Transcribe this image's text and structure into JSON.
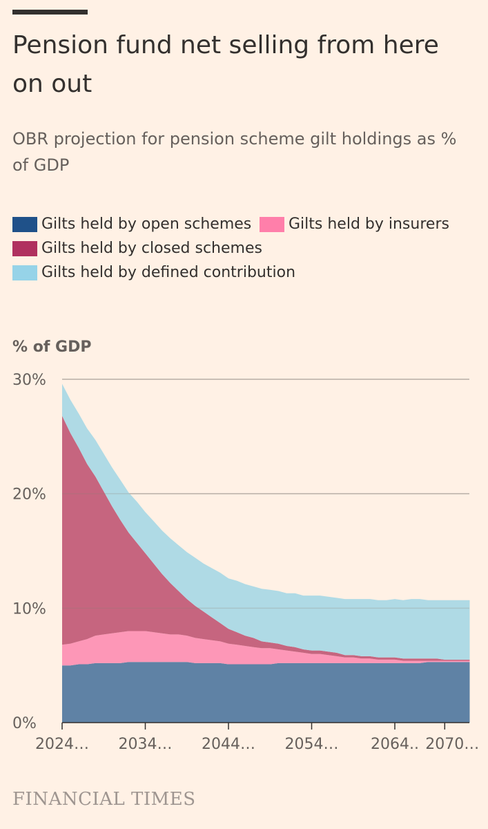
{
  "header": {
    "title": "Pension fund net selling from here on out",
    "subtitle": "OBR projection for pension scheme gilt holdings as % of GDP"
  },
  "legend": [
    {
      "label": "Gilts held by open schemes",
      "color": "#1f5189"
    },
    {
      "label": "Gilts held by insurers",
      "color": "#ff7faa"
    },
    {
      "label": "Gilts held by closed schemes",
      "color": "#b0315f"
    },
    {
      "label": "Gilts held by defined contribution",
      "color": "#96d3e8"
    }
  ],
  "footer": {
    "brand": "FINANCIAL TIMES"
  },
  "chart_data": {
    "type": "area",
    "stacked": true,
    "ylabel": "% of GDP",
    "ylim": [
      0,
      30
    ],
    "yticks": [
      0,
      10,
      20,
      30
    ],
    "ytick_labels": [
      "0%",
      "10%",
      "20%",
      "30%"
    ],
    "xlim": [
      2024,
      2073
    ],
    "xticks": [
      2024,
      2034,
      2044,
      2054,
      2064,
      2070
    ],
    "xtick_labels": [
      "2024…",
      "2034…",
      "2044…",
      "2054…",
      "2064..",
      "2070…"
    ],
    "x": [
      2024,
      2025,
      2026,
      2027,
      2028,
      2029,
      2030,
      2031,
      2032,
      2033,
      2034,
      2035,
      2036,
      2037,
      2038,
      2039,
      2040,
      2041,
      2042,
      2043,
      2044,
      2045,
      2046,
      2047,
      2048,
      2049,
      2050,
      2051,
      2052,
      2053,
      2054,
      2055,
      2056,
      2057,
      2058,
      2059,
      2060,
      2061,
      2062,
      2063,
      2064,
      2065,
      2066,
      2067,
      2068,
      2069,
      2070,
      2071,
      2072,
      2073
    ],
    "series": [
      {
        "name": "Gilts held by open schemes",
        "color": "#5f82a5",
        "values": [
          5.0,
          5.0,
          5.1,
          5.1,
          5.2,
          5.2,
          5.2,
          5.2,
          5.3,
          5.3,
          5.3,
          5.3,
          5.3,
          5.3,
          5.3,
          5.3,
          5.2,
          5.2,
          5.2,
          5.2,
          5.1,
          5.1,
          5.1,
          5.1,
          5.1,
          5.1,
          5.2,
          5.2,
          5.2,
          5.2,
          5.2,
          5.2,
          5.2,
          5.2,
          5.2,
          5.2,
          5.2,
          5.2,
          5.2,
          5.2,
          5.2,
          5.2,
          5.2,
          5.2,
          5.3,
          5.3,
          5.3,
          5.3,
          5.3,
          5.3
        ]
      },
      {
        "name": "Gilts held by insurers",
        "color": "#fd97b7",
        "values": [
          1.8,
          1.9,
          2.0,
          2.2,
          2.4,
          2.5,
          2.6,
          2.7,
          2.7,
          2.7,
          2.7,
          2.6,
          2.5,
          2.4,
          2.4,
          2.3,
          2.2,
          2.1,
          2.0,
          1.9,
          1.8,
          1.7,
          1.6,
          1.5,
          1.4,
          1.4,
          1.2,
          1.1,
          1.0,
          0.9,
          0.8,
          0.8,
          0.7,
          0.6,
          0.5,
          0.5,
          0.4,
          0.4,
          0.3,
          0.3,
          0.3,
          0.2,
          0.2,
          0.2,
          0.1,
          0.1,
          0.1,
          0.1,
          0.1,
          0.1
        ]
      },
      {
        "name": "Gilts held by closed schemes",
        "color": "#c6657f",
        "values": [
          20.0,
          18.4,
          16.9,
          15.3,
          13.9,
          12.5,
          11.1,
          9.8,
          8.6,
          7.7,
          6.8,
          6.0,
          5.2,
          4.5,
          3.8,
          3.2,
          2.8,
          2.4,
          2.0,
          1.6,
          1.3,
          1.1,
          0.9,
          0.8,
          0.6,
          0.5,
          0.5,
          0.4,
          0.4,
          0.3,
          0.3,
          0.3,
          0.3,
          0.3,
          0.2,
          0.2,
          0.2,
          0.2,
          0.2,
          0.2,
          0.2,
          0.2,
          0.2,
          0.2,
          0.2,
          0.2,
          0.1,
          0.1,
          0.1,
          0.1
        ]
      },
      {
        "name": "Gilts held by defined contribution",
        "color": "#afdae5",
        "values": [
          2.8,
          2.9,
          3.0,
          3.1,
          3.2,
          3.3,
          3.4,
          3.5,
          3.5,
          3.6,
          3.6,
          3.7,
          3.8,
          3.9,
          4.0,
          4.1,
          4.2,
          4.2,
          4.3,
          4.4,
          4.4,
          4.5,
          4.5,
          4.5,
          4.6,
          4.6,
          4.6,
          4.6,
          4.7,
          4.7,
          4.8,
          4.8,
          4.8,
          4.8,
          4.9,
          4.9,
          5.0,
          5.0,
          5.0,
          5.0,
          5.1,
          5.1,
          5.2,
          5.2,
          5.1,
          5.1,
          5.2,
          5.2,
          5.2,
          5.2
        ]
      }
    ]
  }
}
